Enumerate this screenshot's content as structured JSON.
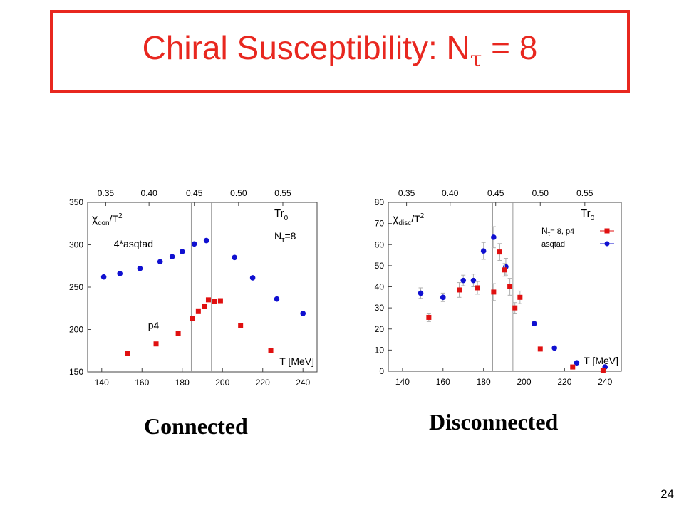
{
  "slide": {
    "title_prefix": "Chiral Susceptibility:  N",
    "title_subscript": "τ",
    "title_suffix": " = 8",
    "page_number": "24",
    "accent_color": "#e8271f"
  },
  "captions": {
    "left": "Connected",
    "right": "Disconnected"
  },
  "chart_data": [
    {
      "type": "scatter",
      "name": "connected",
      "xlim": [
        133,
        247
      ],
      "ylim": [
        150,
        350
      ],
      "x_ticks": [
        140,
        160,
        180,
        200,
        220,
        240
      ],
      "y_ticks": [
        150,
        200,
        250,
        300,
        350
      ],
      "top_axis_ticks": [
        {
          "label": "0.35",
          "x": 142
        },
        {
          "label": "0.40",
          "x": 163.5
        },
        {
          "label": "0.45",
          "x": 186
        },
        {
          "label": "0.50",
          "x": 208
        },
        {
          "label": "0.55",
          "x": 230
        }
      ],
      "vlines": [
        184.5,
        194.5
      ],
      "ylabel_main": "χ",
      "ylabel_sub": "con",
      "ylabel_tail": "/T",
      "ylabel_sup": "2",
      "tr_label": "Tr",
      "tr_sub": "0",
      "ntau_label": "N",
      "ntau_sub": "τ",
      "ntau_tail": "=8",
      "xlabel": "T [MeV]",
      "series_labels": [
        {
          "text": "4*asqtad",
          "x": 146,
          "y": 297
        },
        {
          "text": "p4",
          "x": 163,
          "y": 201
        }
      ],
      "series": [
        {
          "name": "4*asqtad",
          "color": "#1010d0",
          "marker": "circle",
          "x": [
            141,
            149,
            159,
            169,
            175,
            180,
            186,
            192,
            206,
            215,
            227,
            240
          ],
          "y": [
            262,
            266,
            272,
            280,
            286,
            292,
            301,
            305,
            285,
            261,
            236,
            219
          ]
        },
        {
          "name": "p4",
          "color": "#e01010",
          "marker": "square",
          "x": [
            153,
            167,
            178,
            185,
            188,
            191,
            193,
            196,
            199,
            209,
            224
          ],
          "y": [
            172,
            183,
            195,
            213,
            222,
            227,
            235,
            233,
            234,
            205,
            175
          ]
        }
      ]
    },
    {
      "type": "scatter",
      "name": "disconnected",
      "xlim": [
        133,
        248
      ],
      "ylim": [
        0,
        80
      ],
      "x_ticks": [
        140,
        160,
        180,
        200,
        220,
        240
      ],
      "y_ticks": [
        0,
        10,
        20,
        30,
        40,
        50,
        60,
        70,
        80
      ],
      "top_axis_ticks": [
        {
          "label": "0.35",
          "x": 142
        },
        {
          "label": "0.40",
          "x": 163.5
        },
        {
          "label": "0.45",
          "x": 186
        },
        {
          "label": "0.50",
          "x": 208
        },
        {
          "label": "0.55",
          "x": 230
        }
      ],
      "vlines": [
        184.5,
        194.5
      ],
      "ylabel_main": "χ",
      "ylabel_sub": "disc",
      "ylabel_tail": "/T",
      "ylabel_sup": "2",
      "tr_label": "Tr",
      "tr_sub": "0",
      "xlabel": "T [MeV]",
      "legend": {
        "position": "top-right",
        "entries": [
          {
            "prefix": "N",
            "sub": "τ",
            "text": "=  8, p4",
            "color": "#e01010",
            "marker": "square"
          },
          {
            "prefix": "",
            "sub": "",
            "text": "asqtad",
            "color": "#1010d0",
            "marker": "circle"
          }
        ]
      },
      "series": [
        {
          "name": "asqtad",
          "color": "#1010d0",
          "marker": "circle",
          "x": [
            149,
            160,
            170,
            175,
            180,
            185,
            191,
            205,
            215,
            226,
            240
          ],
          "y": [
            37,
            35,
            43,
            43,
            57,
            63.5,
            49.5,
            22.5,
            11,
            4,
            2
          ],
          "err": [
            2.5,
            2,
            2.5,
            3,
            4,
            5,
            4,
            1,
            0.5,
            0.5,
            0.5
          ]
        },
        {
          "name": "p4",
          "color": "#e01010",
          "marker": "square",
          "x": [
            153,
            168,
            177,
            185,
            188,
            190.5,
            193,
            195.5,
            198,
            208,
            224,
            239
          ],
          "y": [
            25.5,
            38.5,
            39.5,
            37.5,
            56.5,
            48,
            40,
            30,
            35,
            10.5,
            2,
            0.5
          ],
          "err": [
            2,
            3.5,
            3,
            4,
            4,
            3,
            4,
            2.5,
            3,
            0.5,
            0.5,
            0.3
          ]
        }
      ]
    }
  ]
}
